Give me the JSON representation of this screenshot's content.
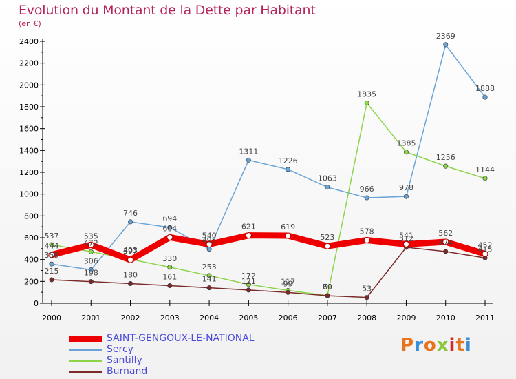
{
  "title": "Evolution du Montant de la Dette par Habitant",
  "unit": "(en €)",
  "logo_text": "Proxiti",
  "colors": {
    "title": "#b5225b",
    "axis": "#000000",
    "legend_text": "#4a4adb",
    "label": "#444444"
  },
  "chart_data": {
    "type": "line",
    "title": "Evolution du Montant de la Dette par Habitant",
    "ylabel": "(en €)",
    "xlabel": "",
    "x": [
      "2000",
      "2001",
      "2002",
      "2003",
      "2004",
      "2005",
      "2006",
      "2007",
      "2008",
      "2009",
      "2010",
      "2011"
    ],
    "ylim": [
      0,
      2400
    ],
    "yticks": [
      "0",
      "200",
      "400",
      "600",
      "800",
      "1000",
      "1200",
      "1400",
      "1600",
      "1800",
      "2000",
      "2200",
      "2400"
    ],
    "grid": false,
    "legend_position": "bottom-left",
    "series": [
      {
        "name": "SAINT-GENGOUX-LE-NATIONAL",
        "color": "#ee0000",
        "values": [
          444,
          535,
          397,
          604,
          540,
          621,
          619,
          523,
          578,
          541,
          562,
          452
        ],
        "labels": [
          "444",
          "535",
          "397",
          "604",
          "540",
          "621",
          "619",
          "523",
          "578",
          "541",
          "562",
          "452"
        ],
        "emphasis": true
      },
      {
        "name": "Sercy",
        "color": "#6aa4d6",
        "values": [
          359,
          306,
          746,
          694,
          495,
          1311,
          1226,
          1063,
          966,
          978,
          2369,
          1888
        ],
        "labels": [
          "359",
          "306",
          "746",
          "694",
          "495",
          "1311",
          "1226",
          "1063",
          "966",
          "978",
          "2369",
          "1888"
        ]
      },
      {
        "name": "Santilly",
        "color": "#8cd44a",
        "values": [
          537,
          472,
          403,
          330,
          253,
          172,
          117,
          70,
          1835,
          1385,
          1256,
          1144
        ],
        "labels": [
          "537",
          "472",
          "403",
          "330",
          "253",
          "172",
          "117",
          "70",
          "1835",
          "1385",
          "1256",
          "1144"
        ]
      },
      {
        "name": "Burnand",
        "color": "#7a2a2a",
        "values": [
          215,
          198,
          180,
          161,
          141,
          121,
          99,
          69,
          53,
          512,
          474,
          415
        ],
        "labels": [
          "215",
          "198",
          "180",
          "161",
          "141",
          "121",
          "99",
          "69",
          "53",
          "512",
          "474",
          "415"
        ]
      }
    ]
  }
}
